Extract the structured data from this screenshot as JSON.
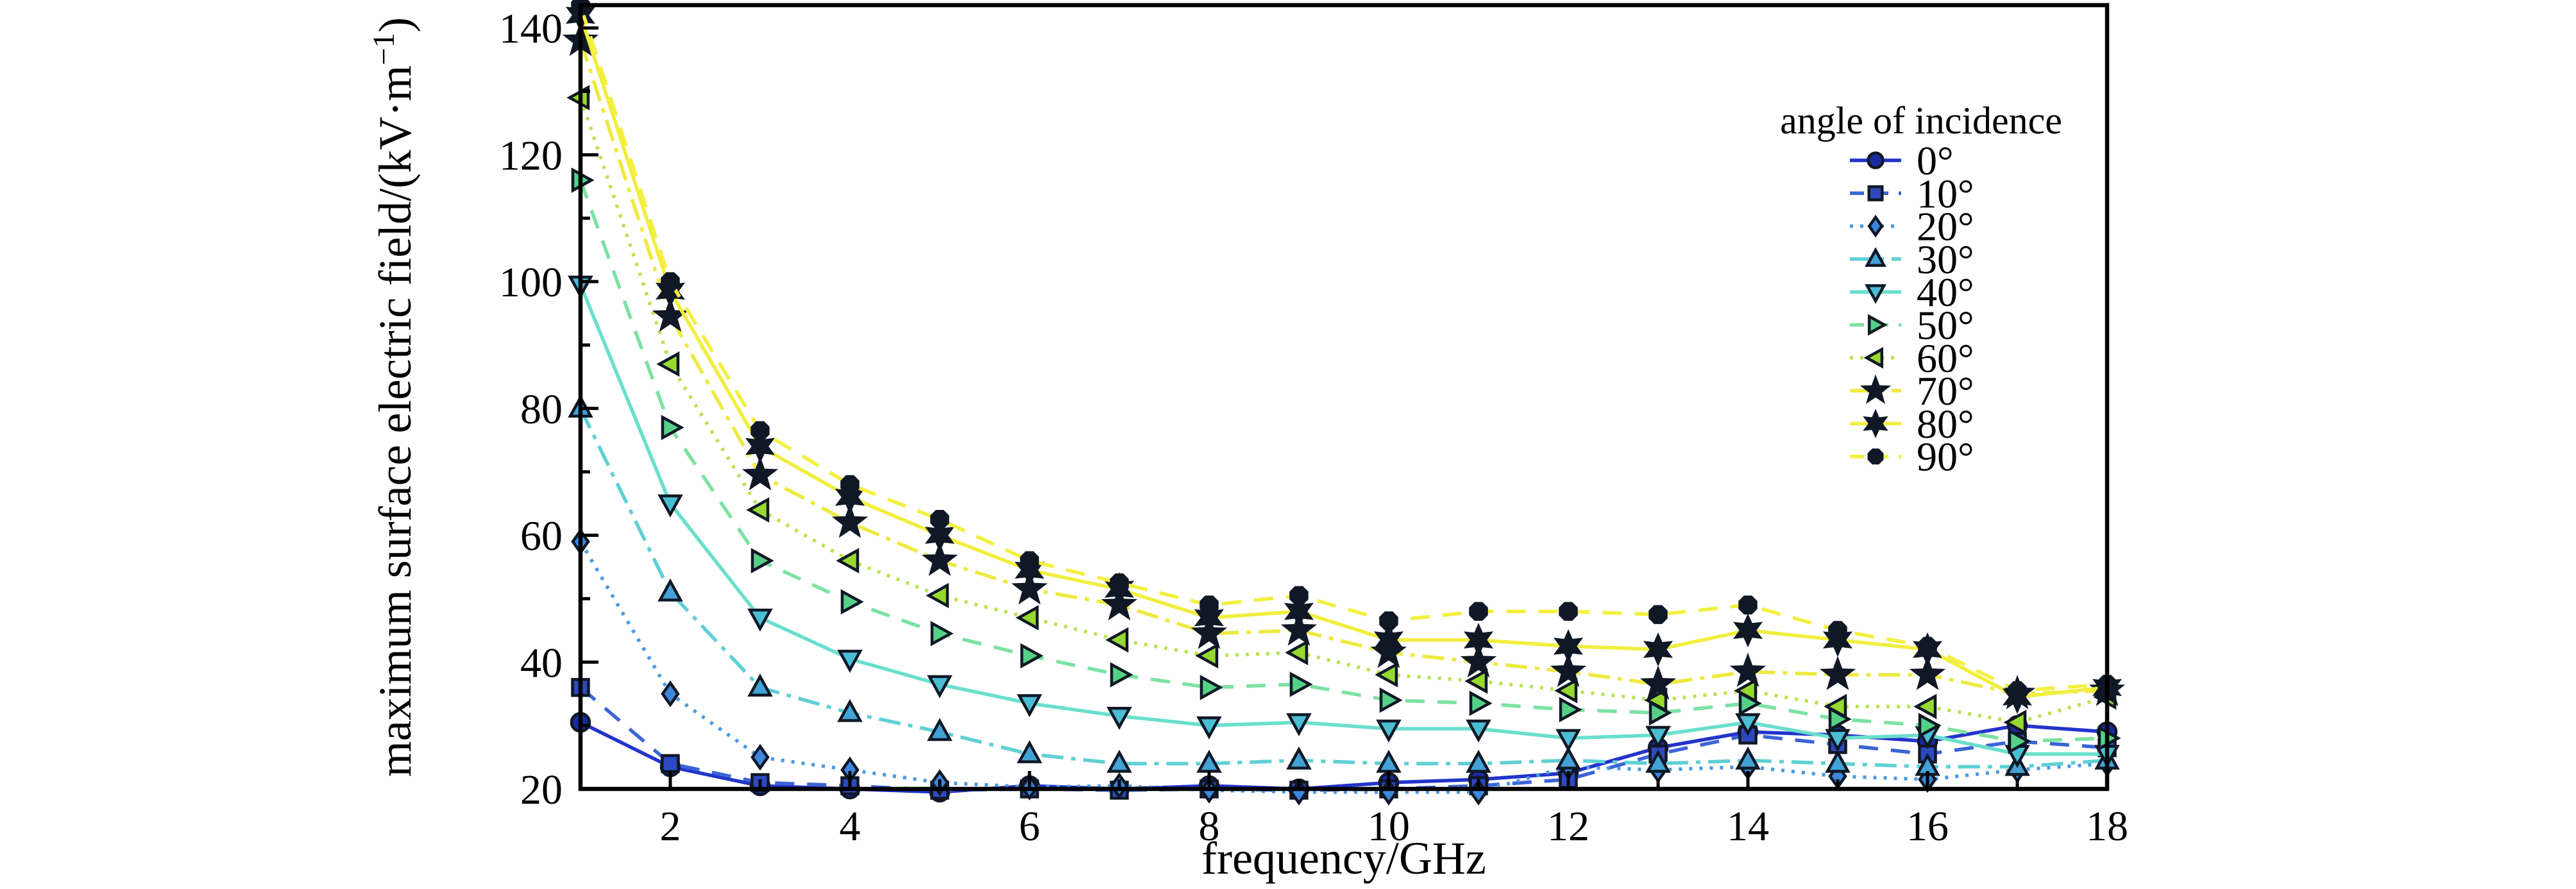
{
  "figure": {
    "background": "#ffffff",
    "text_color": "#000000",
    "axis_color": "#000000"
  },
  "chart_data": {
    "type": "line",
    "title": "",
    "xlabel": "frequency/GHz",
    "ylabel": "maximum surface electric field/(kV·m⁻¹)",
    "xlim": [
      1,
      18
    ],
    "ylim": [
      20,
      143.6
    ],
    "xticks_major": [
      2,
      4,
      6,
      8,
      10,
      12,
      14,
      16,
      18
    ],
    "xticks_minor": [
      1,
      3,
      5,
      7,
      9,
      11,
      13,
      15,
      17
    ],
    "yticks_major": [
      20,
      40,
      60,
      80,
      100,
      120,
      140
    ],
    "yticks_minor": [
      30,
      50,
      70,
      90,
      110,
      130
    ],
    "grid": false,
    "legend": {
      "title": "angle of incidence",
      "position": "upper-right-inside"
    },
    "marker_edge_color": "#101826",
    "x": [
      1,
      2,
      3,
      4,
      5,
      6,
      7,
      8,
      9,
      10,
      11,
      12,
      13,
      14,
      15,
      16,
      17,
      18
    ],
    "series": [
      {
        "name": "0°",
        "line_style": "solid",
        "marker": "circle",
        "color": "#2334cb",
        "marker_fill": "#1b2aa0",
        "values": [
          30.5,
          23.5,
          20.5,
          20,
          19.5,
          20.5,
          20,
          20.5,
          20,
          21,
          21.5,
          22.5,
          26.5,
          29,
          28.5,
          27.5,
          30,
          29
        ]
      },
      {
        "name": "10°",
        "line_style": "dashed",
        "marker": "square",
        "color": "#3c64d7",
        "marker_fill": "#2c49c0",
        "values": [
          36,
          24,
          21,
          20.5,
          19.8,
          20,
          19.8,
          20,
          19.8,
          20,
          20.5,
          21.5,
          25.5,
          28.5,
          27,
          25.5,
          27.5,
          26.5
        ]
      },
      {
        "name": "20°",
        "line_style": "dotted",
        "marker": "diamond",
        "color": "#4c9ae1",
        "marker_fill": "#3c87dc",
        "values": [
          59,
          35,
          25,
          23,
          21,
          20.3,
          20.5,
          19.8,
          19.5,
          19.5,
          19.5,
          23.5,
          23,
          23.5,
          22,
          21.5,
          23,
          24
        ]
      },
      {
        "name": "30°",
        "line_style": "dashdot",
        "marker": "triangle-up",
        "color": "#5fd0d4",
        "marker_fill": "#42a2d5",
        "values": [
          80,
          51,
          36,
          32,
          29,
          25.5,
          24,
          24,
          24.5,
          24,
          24,
          24.5,
          24,
          24.5,
          24,
          23.5,
          23.5,
          24.5
        ]
      },
      {
        "name": "40°",
        "line_style": "solid",
        "marker": "triangle-down",
        "color": "#6adfcd",
        "marker_fill": "#4bbdd3",
        "values": [
          99.5,
          65,
          47,
          40.5,
          36.5,
          33.5,
          31.5,
          30,
          30.5,
          29.5,
          29.5,
          28,
          28.5,
          30.5,
          28,
          28.5,
          25.5,
          25.5
        ]
      },
      {
        "name": "50°",
        "line_style": "dashed",
        "marker": "triangle-right",
        "color": "#7de2a3",
        "marker_fill": "#55d187",
        "values": [
          116,
          77,
          56,
          49.5,
          44.5,
          41,
          38,
          36,
          36.5,
          34,
          33.5,
          32.5,
          32,
          33.5,
          31,
          30,
          27.5,
          28
        ]
      },
      {
        "name": "60°",
        "line_style": "dotted",
        "marker": "triangle-left",
        "color": "#bbe353",
        "marker_fill": "#96d92f",
        "values": [
          129,
          87,
          64,
          56,
          50.5,
          47,
          43.5,
          41,
          41.5,
          38,
          37,
          35.5,
          34,
          35.5,
          33,
          33,
          30.5,
          34.5
        ]
      },
      {
        "name": "70°",
        "line_style": "dashdot",
        "marker": "star-5",
        "color": "#eeea40",
        "marker_fill": "#101826",
        "values": [
          138,
          94.5,
          69.5,
          62,
          56,
          51.5,
          49,
          44.5,
          45,
          41.5,
          40,
          38.5,
          36.5,
          38.5,
          38,
          38,
          35,
          35.5
        ]
      },
      {
        "name": "80°",
        "line_style": "solid",
        "marker": "star-6",
        "color": "#f1ee3e",
        "marker_fill": "#101826",
        "values": [
          142,
          98.5,
          74,
          66,
          60,
          54.5,
          51.5,
          47,
          48,
          43.5,
          43.5,
          42.5,
          42,
          45,
          43.5,
          42,
          34.5,
          36
        ]
      },
      {
        "name": "90°",
        "line_style": "dashed",
        "marker": "octagon",
        "color": "#f3f040",
        "marker_fill": "#101826",
        "values": [
          143.5,
          100,
          76.5,
          68,
          62.5,
          56,
          52.5,
          49,
          50.5,
          46.5,
          48,
          48,
          47.5,
          49,
          45,
          42.5,
          35.5,
          36.5
        ]
      }
    ]
  }
}
